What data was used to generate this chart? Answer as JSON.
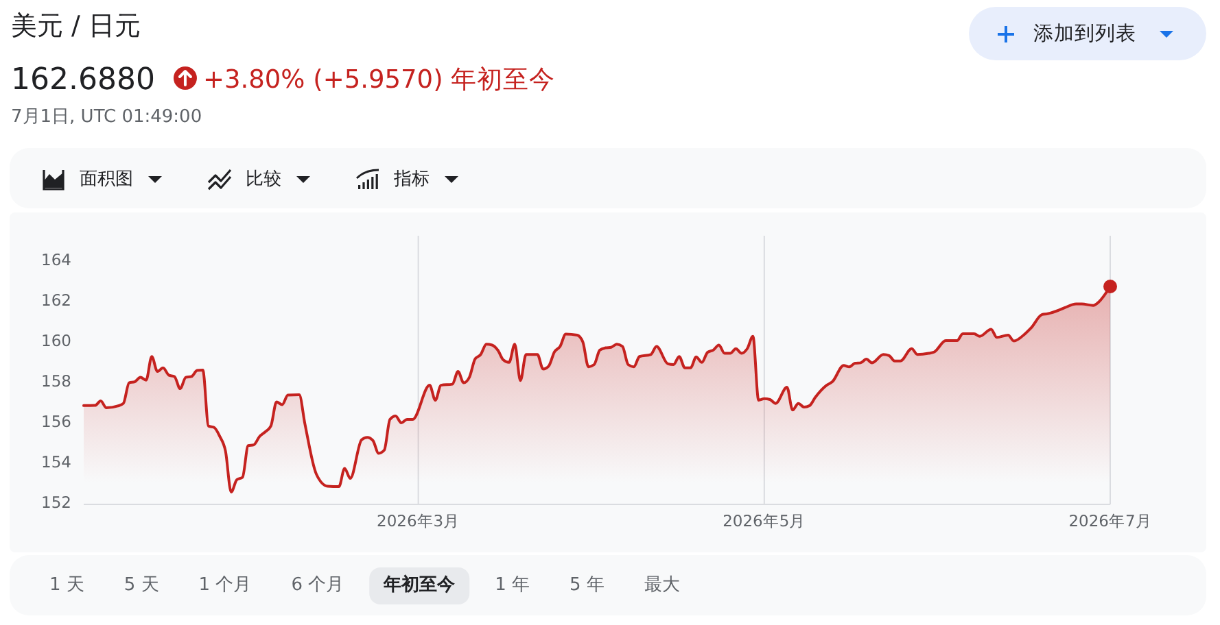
{
  "chart_data": {
    "type": "area",
    "title": "美元 / 日元",
    "subtitle": "162.6880",
    "annotations": [
      "+3.80% (+5.9570) 年初至今",
      "7月1日, UTC 01:49:00",
      "添加到列表",
      "面积图",
      "比较",
      "指标",
      "1 天",
      "5 天",
      "1 个月",
      "6 个月",
      "年初至今",
      "1 年",
      "5 年",
      "最大"
    ],
    "series": [
      {
        "color": "#c5221f",
        "x": [
          "2026-01-01",
          "2026-01-03",
          "2026-01-04",
          "2026-01-05",
          "2026-01-07",
          "2026-01-08",
          "2026-01-09",
          "2026-01-10",
          "2026-01-11",
          "2026-01-12",
          "2026-01-13",
          "2026-01-14",
          "2026-01-15",
          "2026-01-16",
          "2026-01-17",
          "2026-01-18",
          "2026-01-19",
          "2026-01-20",
          "2026-01-21",
          "2026-01-22",
          "2026-01-23",
          "2026-01-24",
          "2026-01-25",
          "2026-01-26",
          "2026-01-27",
          "2026-01-28",
          "2026-01-29",
          "2026-01-30",
          "2026-01-31",
          "2026-02-01",
          "2026-02-02",
          "2026-02-03",
          "2026-02-04",
          "2026-02-05",
          "2026-02-06",
          "2026-02-08",
          "2026-02-09",
          "2026-02-11",
          "2026-02-13",
          "2026-02-15",
          "2026-02-16",
          "2026-02-17",
          "2026-02-19",
          "2026-02-20",
          "2026-02-21",
          "2026-02-22",
          "2026-02-23",
          "2026-02-24",
          "2026-02-25",
          "2026-02-26",
          "2026-02-27",
          "2026-02-28",
          "2026-03-03",
          "2026-03-04",
          "2026-03-05",
          "2026-03-07",
          "2026-03-08",
          "2026-03-09",
          "2026-03-10",
          "2026-03-11",
          "2026-03-12",
          "2026-03-13",
          "2026-03-14",
          "2026-03-15",
          "2026-03-16",
          "2026-03-17",
          "2026-03-18",
          "2026-03-19",
          "2026-03-20",
          "2026-03-22",
          "2026-03-23",
          "2026-03-24",
          "2026-03-25",
          "2026-03-26",
          "2026-03-27",
          "2026-03-29",
          "2026-03-30",
          "2026-03-31",
          "2026-04-01",
          "2026-04-02",
          "2026-04-03",
          "2026-04-04",
          "2026-04-05",
          "2026-04-06",
          "2026-04-07",
          "2026-04-08",
          "2026-04-09",
          "2026-04-11",
          "2026-04-12",
          "2026-04-14",
          "2026-04-15",
          "2026-04-16",
          "2026-04-17",
          "2026-04-18",
          "2026-04-19",
          "2026-04-20",
          "2026-04-21",
          "2026-04-22",
          "2026-04-23",
          "2026-04-24",
          "2026-04-25",
          "2026-04-26",
          "2026-04-27",
          "2026-04-28",
          "2026-04-29",
          "2026-04-30",
          "2026-05-01",
          "2026-05-02",
          "2026-05-03",
          "2026-05-05",
          "2026-05-06",
          "2026-05-07",
          "2026-05-08",
          "2026-05-09",
          "2026-05-10",
          "2026-05-12",
          "2026-05-13",
          "2026-05-15",
          "2026-05-16",
          "2026-05-17",
          "2026-05-18",
          "2026-05-19",
          "2026-05-20",
          "2026-05-22",
          "2026-05-23",
          "2026-05-24",
          "2026-05-25",
          "2026-05-27",
          "2026-05-28",
          "2026-05-30",
          "2026-05-31",
          "2026-06-02",
          "2026-06-04",
          "2026-06-05",
          "2026-06-07",
          "2026-06-08",
          "2026-06-10",
          "2026-06-11",
          "2026-06-13",
          "2026-06-14",
          "2026-06-16",
          "2026-06-17",
          "2026-06-19",
          "2026-06-20",
          "2026-06-22",
          "2026-06-23",
          "2026-06-25",
          "2026-06-26",
          "2026-06-28",
          "2026-06-29",
          "2026-07-01"
        ],
        "values": [
          156.79,
          156.8,
          157.02,
          156.68,
          156.77,
          156.9,
          157.92,
          157.97,
          158.19,
          158.05,
          159.22,
          158.48,
          158.66,
          158.3,
          158.23,
          157.63,
          158.19,
          158.23,
          158.53,
          158.55,
          155.78,
          155.71,
          155.26,
          154.54,
          152.51,
          153.12,
          153.24,
          154.81,
          154.85,
          155.26,
          155.49,
          155.78,
          156.97,
          156.84,
          157.31,
          157.33,
          155.89,
          153.41,
          152.8,
          152.78,
          153.68,
          153.19,
          155.1,
          155.22,
          155.06,
          154.43,
          154.59,
          156.11,
          156.28,
          155.94,
          156.11,
          156.11,
          157.8,
          157.06,
          157.8,
          157.85,
          158.48,
          157.92,
          158.19,
          159.09,
          159.32,
          159.83,
          159.79,
          159.54,
          159.05,
          158.93,
          159.83,
          158.03,
          159.32,
          159.32,
          158.6,
          158.75,
          159.45,
          159.72,
          160.33,
          160.28,
          159.95,
          158.71,
          158.82,
          159.54,
          159.65,
          159.68,
          159.83,
          159.72,
          158.82,
          158.71,
          159.22,
          159.32,
          159.72,
          158.86,
          158.82,
          159.22,
          158.66,
          158.66,
          159.2,
          158.93,
          159.43,
          159.54,
          159.79,
          159.38,
          159.38,
          159.61,
          159.38,
          159.61,
          160.22,
          157.06,
          157.13,
          157.09,
          156.9,
          157.7,
          156.57,
          156.9,
          156.72,
          156.79,
          157.2,
          157.8,
          157.97,
          158.78,
          158.71,
          158.89,
          158.91,
          159.09,
          158.91,
          159.32,
          159.27,
          159.0,
          159.0,
          159.61,
          159.32,
          159.38,
          159.45,
          160.01,
          160.01,
          160.35,
          160.35,
          160.22,
          160.57,
          160.17,
          160.28,
          159.99,
          160.35,
          160.62,
          161.3,
          161.34,
          161.52,
          161.64,
          161.82,
          161.82,
          161.75,
          161.93,
          162.69
        ]
      },
      {
        "type": "scatter",
        "color": "#c5221f",
        "marker": "circle",
        "x": [
          "2026-07-01"
        ],
        "values": [
          162.69
        ]
      }
    ],
    "xlim": [
      "2026-01-01",
      "2026-07-01"
    ],
    "xticks": [
      {
        "value": "2026-03-01",
        "label": "2026年3月"
      },
      {
        "value": "2026-05-01",
        "label": "2026年5月"
      },
      {
        "value": "2026-07-01",
        "label": "2026年7月"
      }
    ],
    "ylim": [
      151.9,
      165.2
    ],
    "yticks": [
      152,
      154,
      156,
      158,
      160,
      162,
      164
    ],
    "grid": "x"
  }
}
